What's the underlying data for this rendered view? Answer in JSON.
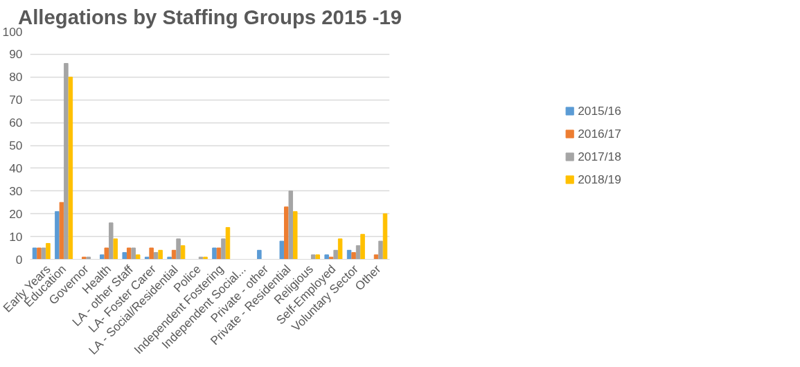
{
  "chart_data": {
    "type": "bar",
    "title": "Allegations by Staffing Groups 2015 -19",
    "categories": [
      "Early Years",
      "Education",
      "Governor",
      "Health",
      "LA - other Staff",
      "LA- Foster Carer",
      "LA - Social/Residential",
      "Police",
      "Independent Fostering",
      "Independent Social...",
      "Private - other",
      "Private - Residential",
      "Religious",
      "Self-Employed",
      "Voluntary Sector",
      "Other"
    ],
    "series": [
      {
        "name": "2015/16",
        "color": "#5b9bd5",
        "values": [
          5,
          21,
          0,
          2,
          3,
          1,
          1,
          0,
          5,
          0,
          4,
          8,
          0,
          2,
          4,
          0
        ]
      },
      {
        "name": "2016/17",
        "color": "#ed7d31",
        "values": [
          5,
          25,
          1,
          5,
          5,
          5,
          4,
          0,
          5,
          0,
          0,
          23,
          0,
          1,
          3,
          2
        ]
      },
      {
        "name": "2017/18",
        "color": "#a5a5a5",
        "values": [
          5,
          86,
          1,
          16,
          5,
          3,
          9,
          1,
          9,
          0,
          0,
          30,
          2,
          4,
          6,
          8
        ]
      },
      {
        "name": "2018/19",
        "color": "#ffc000",
        "values": [
          7,
          80,
          0,
          9,
          2,
          4,
          6,
          1,
          14,
          0,
          0,
          21,
          2,
          9,
          11,
          20
        ]
      }
    ],
    "ylim": [
      0,
      100
    ],
    "yticks": [
      0,
      10,
      20,
      30,
      40,
      50,
      60,
      70,
      80,
      90,
      100
    ],
    "grid": "y",
    "legend": "right"
  }
}
